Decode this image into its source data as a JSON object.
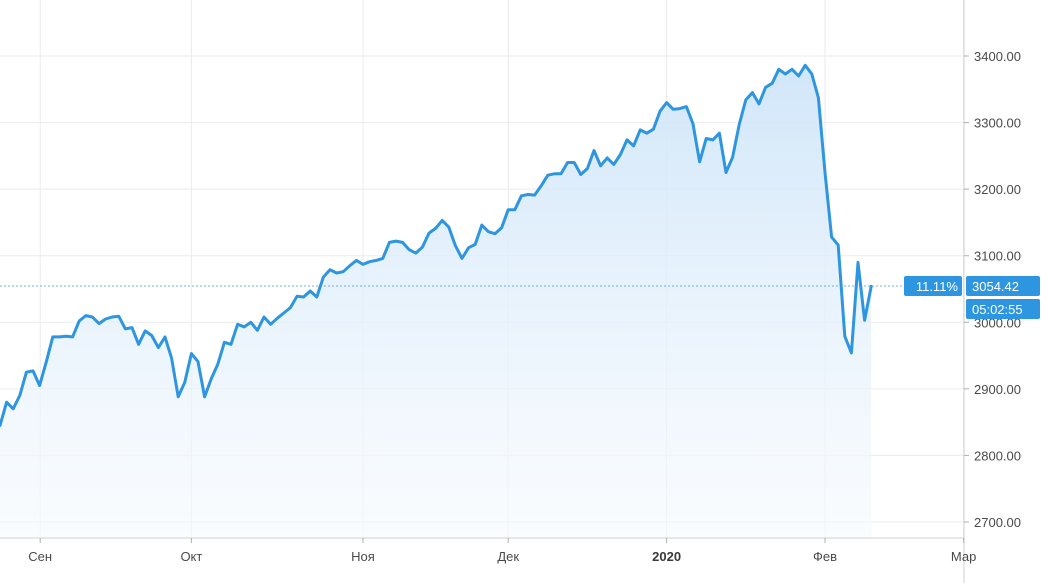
{
  "chart_data": {
    "type": "area",
    "title": "",
    "xlabel": "",
    "ylabel": "",
    "ylim": [
      2680,
      3460
    ],
    "grid": true,
    "colors": {
      "line": "#2e96e0",
      "fill_top": "#cfe5f9",
      "fill_bottom": "#f6fafe",
      "badge": "#2e96e0",
      "ref_line": "#2e96e0"
    },
    "x_ticks": [
      {
        "label": "Сен",
        "index": 7,
        "bold": false
      },
      {
        "label": "Окт",
        "index": 29,
        "bold": false
      },
      {
        "label": "Ноя",
        "index": 55,
        "bold": false
      },
      {
        "label": "Дек",
        "index": 77,
        "bold": false
      },
      {
        "label": "2020",
        "index": 101,
        "bold": true
      },
      {
        "label": "Фев",
        "index": 125,
        "bold": false
      },
      {
        "label": "Мар",
        "index": 146,
        "bold": false
      }
    ],
    "y_ticks": [
      "2700.00",
      "2800.00",
      "2900.00",
      "3000.00",
      "3100.00",
      "3200.00",
      "3300.00",
      "3400.00"
    ],
    "series": [
      {
        "values": [
          2845,
          2880,
          2870,
          2890,
          2925,
          2927,
          2905,
          2940,
          2978,
          2978,
          2979,
          2978,
          3002,
          3010,
          3008,
          2998,
          3005,
          3008,
          3009,
          2990,
          2992,
          2967,
          2987,
          2980,
          2962,
          2978,
          2946,
          2888,
          2910,
          2953,
          2941,
          2888,
          2915,
          2937,
          2970,
          2967,
          2997,
          2993,
          3000,
          2988,
          3008,
          2997,
          3006,
          3014,
          3022,
          3039,
          3038,
          3047,
          3038,
          3068,
          3079,
          3074,
          3076,
          3085,
          3093,
          3087,
          3091,
          3093,
          3096,
          3120,
          3122,
          3120,
          3109,
          3104,
          3113,
          3134,
          3141,
          3153,
          3143,
          3115,
          3096,
          3112,
          3117,
          3146,
          3136,
          3133,
          3142,
          3169,
          3169,
          3190,
          3192,
          3191,
          3205,
          3221,
          3223,
          3223,
          3240,
          3240,
          3222,
          3231,
          3258,
          3235,
          3247,
          3237,
          3252,
          3274,
          3265,
          3289,
          3284,
          3290,
          3317,
          3330,
          3320,
          3321,
          3324,
          3298,
          3241,
          3276,
          3274,
          3284,
          3225,
          3248,
          3297,
          3334,
          3345,
          3328,
          3353,
          3359,
          3380,
          3373,
          3380,
          3370,
          3386,
          3373,
          3337,
          3225,
          3128,
          3116,
          2979,
          2954,
          3090,
          3003,
          3054
        ],
        "last_change": "11.11%",
        "last_value": "3054.42",
        "countdown": "05:02:55"
      }
    ]
  }
}
